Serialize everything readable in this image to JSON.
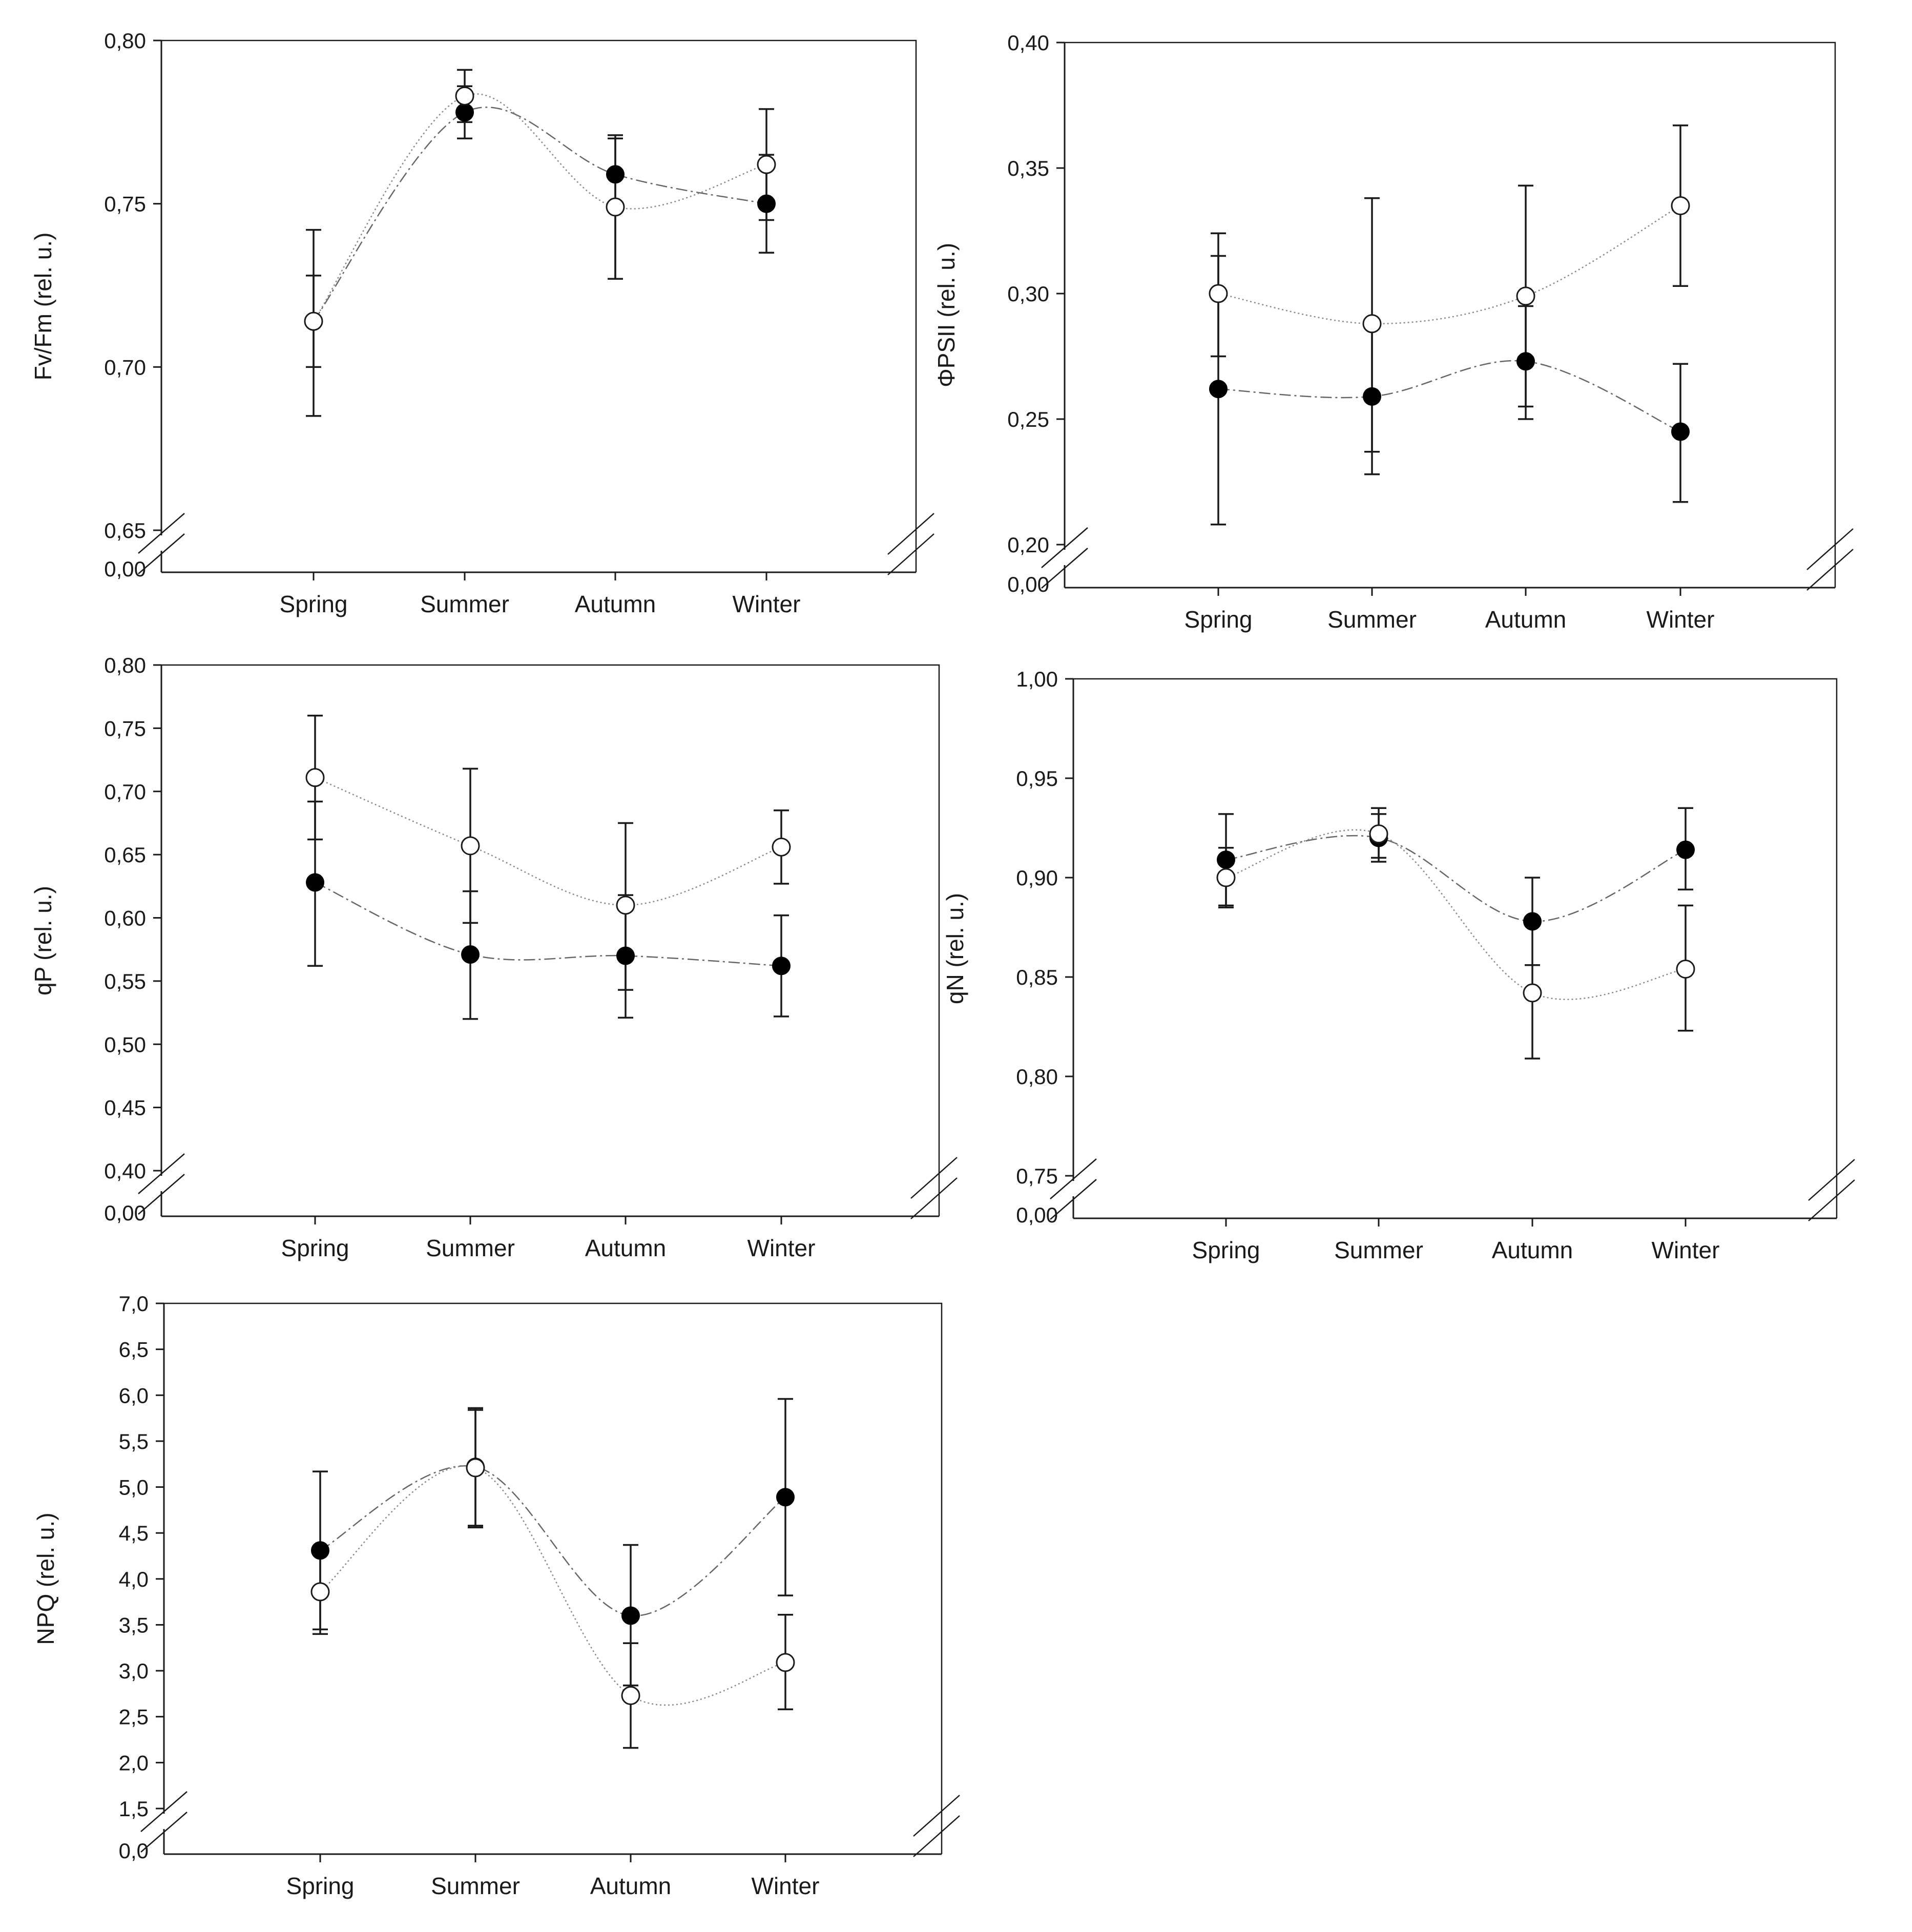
{
  "chart_data": [
    {
      "id": "fvfm",
      "type": "scatter",
      "ylabel": "Fv/Fm (rel. u.)",
      "categories": [
        "Spring",
        "Summer",
        "Autumn",
        "Winter"
      ],
      "ylim": [
        0.65,
        0.8
      ],
      "axis_break": true,
      "axis_origin_label": "0,00",
      "yticks": [
        0.65,
        0.7,
        0.75,
        0.8
      ],
      "ytick_labels": [
        "0,65",
        "0,70",
        "0,75",
        "0,80"
      ],
      "series": [
        {
          "name": "filled",
          "marker": "filled-circle",
          "values": [
            0.714,
            0.778,
            0.759,
            0.75
          ],
          "err_low": [
            0.7,
            0.77,
            0.727,
            0.735
          ],
          "err_high": [
            0.728,
            0.786,
            0.771,
            0.765
          ]
        },
        {
          "name": "open",
          "marker": "open-circle",
          "values": [
            0.714,
            0.783,
            0.749,
            0.762
          ],
          "err_low": [
            0.685,
            0.775,
            0.727,
            0.745
          ],
          "err_high": [
            0.742,
            0.791,
            0.77,
            0.779
          ]
        }
      ]
    },
    {
      "id": "phipsii",
      "type": "scatter",
      "ylabel": "ΦPSII (rel. u.)",
      "categories": [
        "Spring",
        "Summer",
        "Autumn",
        "Winter"
      ],
      "ylim": [
        0.2,
        0.4
      ],
      "axis_break": true,
      "axis_origin_label": "0,00",
      "yticks": [
        0.2,
        0.25,
        0.3,
        0.35,
        0.4
      ],
      "ytick_labels": [
        "0,20",
        "0,25",
        "0,30",
        "0,35",
        "0,40"
      ],
      "series": [
        {
          "name": "filled",
          "marker": "filled-circle",
          "values": [
            0.262,
            0.259,
            0.273,
            0.245
          ],
          "err_low": [
            0.208,
            0.228,
            0.25,
            0.217
          ],
          "err_high": [
            0.315,
            0.289,
            0.295,
            0.272
          ]
        },
        {
          "name": "open",
          "marker": "open-circle",
          "values": [
            0.3,
            0.288,
            0.299,
            0.335
          ],
          "err_low": [
            0.275,
            0.237,
            0.255,
            0.303
          ],
          "err_high": [
            0.324,
            0.338,
            0.343,
            0.367
          ]
        }
      ]
    },
    {
      "id": "qp",
      "type": "scatter",
      "ylabel": "qP (rel. u.)",
      "categories": [
        "Spring",
        "Summer",
        "Autumn",
        "Winter"
      ],
      "ylim": [
        0.4,
        0.8
      ],
      "axis_break": true,
      "axis_origin_label": "0,00",
      "yticks": [
        0.4,
        0.45,
        0.5,
        0.55,
        0.6,
        0.65,
        0.7,
        0.75,
        0.8
      ],
      "ytick_labels": [
        "0,40",
        "0,45",
        "0,50",
        "0,55",
        "0,60",
        "0,65",
        "0,70",
        "0,75",
        "0,80"
      ],
      "series": [
        {
          "name": "filled",
          "marker": "filled-circle",
          "values": [
            0.628,
            0.571,
            0.57,
            0.562
          ],
          "err_low": [
            0.562,
            0.52,
            0.521,
            0.522
          ],
          "err_high": [
            0.692,
            0.621,
            0.618,
            0.602
          ]
        },
        {
          "name": "open",
          "marker": "open-circle",
          "values": [
            0.711,
            0.657,
            0.61,
            0.656
          ],
          "err_low": [
            0.662,
            0.596,
            0.543,
            0.627
          ],
          "err_high": [
            0.76,
            0.718,
            0.675,
            0.685
          ]
        }
      ]
    },
    {
      "id": "qn",
      "type": "scatter",
      "ylabel": "qN   (rel. u.)",
      "categories": [
        "Spring",
        "Summer",
        "Autumn",
        "Winter"
      ],
      "ylim": [
        0.75,
        1.0
      ],
      "axis_break": true,
      "axis_origin_label": "0,00",
      "yticks": [
        0.75,
        0.8,
        0.85,
        0.9,
        0.95,
        1.0
      ],
      "ytick_labels": [
        "0,75",
        "0,80",
        "0,85",
        "0,90",
        "0,95",
        "1,00"
      ],
      "series": [
        {
          "name": "filled",
          "marker": "filled-circle",
          "values": [
            0.909,
            0.92,
            0.878,
            0.914
          ],
          "err_low": [
            0.886,
            0.908,
            0.856,
            0.894
          ],
          "err_high": [
            0.932,
            0.932,
            0.9,
            0.935
          ]
        },
        {
          "name": "open",
          "marker": "open-circle",
          "values": [
            0.9,
            0.922,
            0.842,
            0.854
          ],
          "err_low": [
            0.885,
            0.91,
            0.809,
            0.823
          ],
          "err_high": [
            0.915,
            0.935,
            0.856,
            0.886
          ]
        }
      ]
    },
    {
      "id": "npq",
      "type": "scatter",
      "ylabel": "NPQ (rel. u.)",
      "categories": [
        "Spring",
        "Summer",
        "Autumn",
        "Winter"
      ],
      "ylim": [
        1.5,
        7.0
      ],
      "axis_break": true,
      "axis_origin_label": "0,0",
      "yticks": [
        1.5,
        2.0,
        2.5,
        3.0,
        3.5,
        4.0,
        4.5,
        5.0,
        5.5,
        6.0,
        6.5,
        7.0
      ],
      "ytick_labels": [
        "1,5",
        "2,0",
        "2,5",
        "3,0",
        "3,5",
        "4,0",
        "4,5",
        "5,0",
        "5,5",
        "6,0",
        "6,5",
        "7,0"
      ],
      "series": [
        {
          "name": "filled",
          "marker": "filled-circle",
          "values": [
            4.31,
            5.22,
            3.6,
            4.89
          ],
          "err_low": [
            3.45,
            4.58,
            2.84,
            3.82
          ],
          "err_high": [
            5.17,
            5.86,
            4.37,
            5.96
          ]
        },
        {
          "name": "open",
          "marker": "open-circle",
          "values": [
            3.86,
            5.21,
            2.73,
            3.09
          ],
          "err_low": [
            3.4,
            4.56,
            2.16,
            2.58
          ],
          "err_high": [
            4.32,
            5.84,
            3.3,
            3.61
          ]
        }
      ]
    }
  ]
}
